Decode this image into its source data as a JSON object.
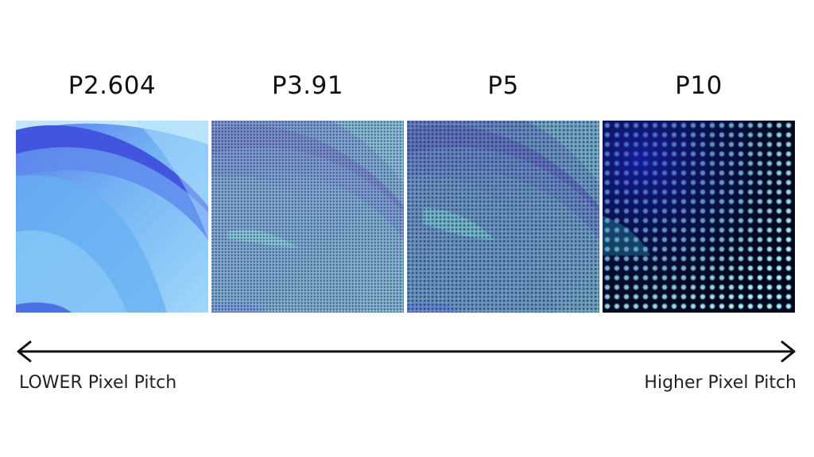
{
  "panels": [
    {
      "label": "P2.604"
    },
    {
      "label": "P3.91"
    },
    {
      "label": "P5"
    },
    {
      "label": "P10"
    }
  ],
  "scale": {
    "left_label": "LOWER Pixel Pitch",
    "right_label": "Higher Pixel Pitch"
  },
  "colors": {
    "arrow": "#111111"
  }
}
